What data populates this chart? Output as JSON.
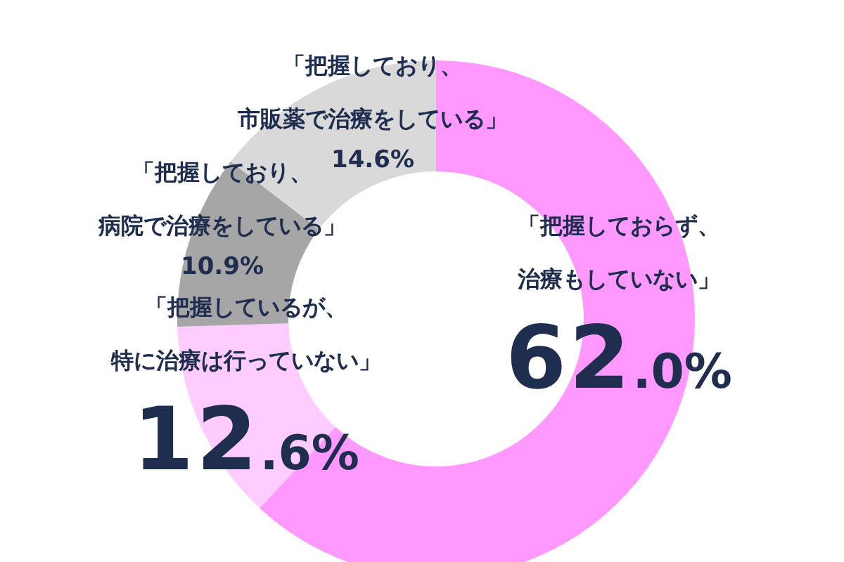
{
  "chart_data": {
    "type": "donut",
    "categories": [
      "「把握しておらず、治療もしていない」",
      "「把握しているが、特に治療は行っていない」",
      "「把握しており、病院で治療をしている」",
      "「把握しており、市販薬で治療をしている」"
    ],
    "values": [
      62.0,
      12.6,
      10.9,
      14.6
    ],
    "value_labels": [
      "62.0%",
      "12.6%",
      "10.9%",
      "14.6%"
    ],
    "colors": [
      "#ff99ff",
      "#ffccff",
      "#a6a6a6",
      "#d9d9d9"
    ],
    "legend": false
  }
}
